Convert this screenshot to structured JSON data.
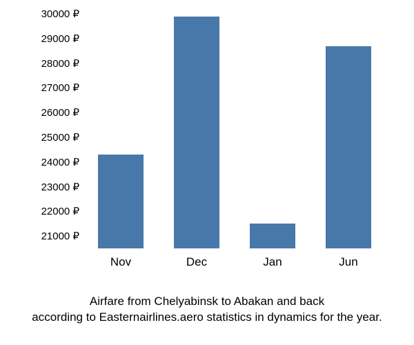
{
  "chart": {
    "type": "bar",
    "categories": [
      "Nov",
      "Dec",
      "Jan",
      "Jun"
    ],
    "values": [
      24300,
      29900,
      21500,
      28700
    ],
    "bar_color": "#4878a9",
    "background_color": "#ffffff",
    "ylim": [
      20500,
      30000
    ],
    "yticks": [
      21000,
      22000,
      23000,
      24000,
      25000,
      26000,
      27000,
      28000,
      29000,
      30000
    ],
    "ytick_labels": [
      "21000 ₽",
      "22000 ₽",
      "23000 ₽",
      "24000 ₽",
      "25000 ₽",
      "26000 ₽",
      "27000 ₽",
      "28000 ₽",
      "29000 ₽",
      "30000 ₽"
    ],
    "label_fontsize": 15,
    "xlabel_fontsize": 17,
    "bar_width_ratio": 0.6,
    "caption": "Airfare from Chelyabinsk to Abakan and back\naccording to Easternairlines.aero statistics in dynamics for the year.",
    "caption_fontsize": 17
  }
}
